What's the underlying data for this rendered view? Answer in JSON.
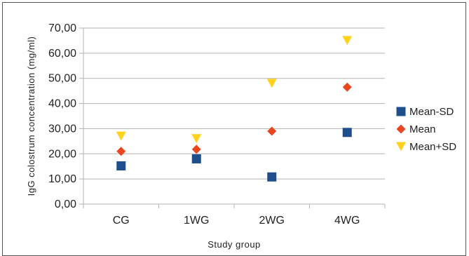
{
  "chart_data": {
    "type": "scatter",
    "categories": [
      "CG",
      "1WG",
      "2WG",
      "4WG"
    ],
    "series": [
      {
        "name": "Mean-SD",
        "marker": "square",
        "color": "#1f4e8c",
        "values": [
          15.2,
          18.0,
          10.8,
          28.5
        ]
      },
      {
        "name": "Mean",
        "marker": "diamond",
        "color": "#e8461e",
        "values": [
          21.0,
          21.8,
          29.0,
          46.5
        ]
      },
      {
        "name": "Mean+SD",
        "marker": "triangle-down",
        "color": "#ffd21e",
        "values": [
          27.0,
          26.0,
          48.0,
          65.0
        ]
      }
    ],
    "xlabel": "Study group",
    "ylabel": "IgG colostrum concentration (mg/ml)",
    "ylim": [
      0,
      70
    ],
    "yticks": [
      "0,00",
      "10,00",
      "20,00",
      "30,00",
      "40,00",
      "50,00",
      "60,00",
      "70,00"
    ],
    "grid": true,
    "legend_position": "right"
  }
}
